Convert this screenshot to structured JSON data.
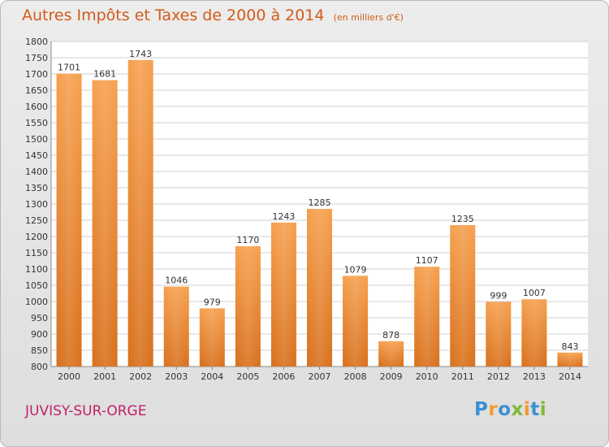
{
  "title": {
    "main": "Autres Impôts et Taxes de 2000 à 2014",
    "unit": "(en milliers d'€)"
  },
  "city": "JUVISY-SUR-ORGE",
  "logo": {
    "text": "Proxiti"
  },
  "colors": {
    "bar_light": "#f6a04e",
    "bar_dark": "#d8701c",
    "title": "#d45a18",
    "city": "#c3206a"
  },
  "chart_data": {
    "type": "bar",
    "title": "Autres Impôts et Taxes de 2000 à 2014",
    "subtitle": "(en milliers d'€)",
    "xlabel": "",
    "ylabel": "",
    "ylim": [
      800,
      1800
    ],
    "ytick_step": 50,
    "grid": true,
    "legend": "none",
    "categories": [
      "2000",
      "2001",
      "2002",
      "2003",
      "2004",
      "2005",
      "2006",
      "2007",
      "2008",
      "2009",
      "2010",
      "2011",
      "2012",
      "2013",
      "2014"
    ],
    "values": [
      1701,
      1681,
      1743,
      1046,
      979,
      1170,
      1243,
      1285,
      1079,
      878,
      1107,
      1235,
      999,
      1007,
      843
    ]
  }
}
